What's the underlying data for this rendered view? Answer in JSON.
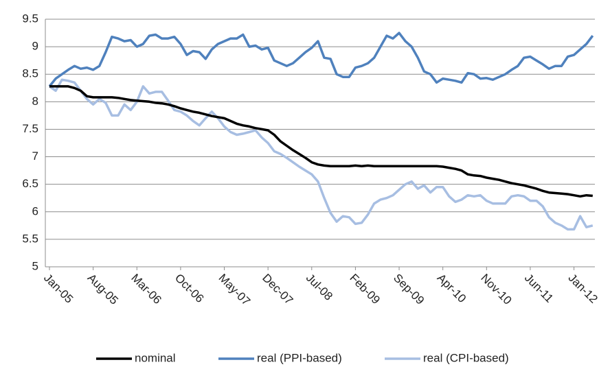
{
  "chart_data": {
    "type": "line",
    "categories": [
      "Jan-05",
      null,
      null,
      null,
      null,
      null,
      null,
      "Aug-05",
      null,
      null,
      null,
      null,
      null,
      null,
      "Mar-06",
      null,
      null,
      null,
      null,
      null,
      null,
      "Oct-06",
      null,
      null,
      null,
      null,
      null,
      null,
      "May-07",
      null,
      null,
      null,
      null,
      null,
      null,
      "Dec-07",
      null,
      null,
      null,
      null,
      null,
      null,
      "Jul-08",
      null,
      null,
      null,
      null,
      null,
      null,
      "Feb-09",
      null,
      null,
      null,
      null,
      null,
      null,
      "Sep-09",
      null,
      null,
      null,
      null,
      null,
      null,
      "Apr-10",
      null,
      null,
      null,
      null,
      null,
      null,
      "Nov-10",
      null,
      null,
      null,
      null,
      null,
      null,
      "Jun-11",
      null,
      null,
      null,
      null,
      null,
      null,
      "Jan-12",
      null,
      null,
      null
    ],
    "series": [
      {
        "name": "nominal",
        "color": "#000000",
        "values": [
          8.28,
          8.28,
          8.28,
          8.28,
          8.25,
          8.2,
          8.1,
          8.08,
          8.08,
          8.08,
          8.08,
          8.07,
          8.05,
          8.03,
          8.02,
          8.01,
          8.0,
          7.98,
          7.97,
          7.95,
          7.92,
          7.88,
          7.85,
          7.82,
          7.8,
          7.77,
          7.74,
          7.72,
          7.7,
          7.65,
          7.6,
          7.57,
          7.55,
          7.52,
          7.5,
          7.48,
          7.4,
          7.28,
          7.2,
          7.12,
          7.05,
          6.98,
          6.9,
          6.86,
          6.84,
          6.83,
          6.83,
          6.83,
          6.83,
          6.84,
          6.83,
          6.84,
          6.83,
          6.83,
          6.83,
          6.83,
          6.83,
          6.83,
          6.83,
          6.83,
          6.83,
          6.83,
          6.83,
          6.82,
          6.8,
          6.78,
          6.75,
          6.68,
          6.66,
          6.65,
          6.62,
          6.6,
          6.58,
          6.55,
          6.52,
          6.5,
          6.48,
          6.45,
          6.42,
          6.38,
          6.35,
          6.34,
          6.33,
          6.32,
          6.3,
          6.28,
          6.3,
          6.29
        ]
      },
      {
        "name": "real (PPI-based)",
        "color": "#4f81bd",
        "values": [
          8.28,
          8.42,
          8.5,
          8.58,
          8.65,
          8.6,
          8.62,
          8.58,
          8.65,
          8.9,
          9.18,
          9.15,
          9.1,
          9.12,
          9.0,
          9.05,
          9.2,
          9.22,
          9.15,
          9.15,
          9.18,
          9.05,
          8.85,
          8.92,
          8.9,
          8.78,
          8.95,
          9.05,
          9.1,
          9.15,
          9.15,
          9.22,
          9.0,
          9.02,
          8.95,
          8.98,
          8.75,
          8.7,
          8.65,
          8.7,
          8.8,
          8.9,
          8.98,
          9.1,
          8.8,
          8.78,
          8.5,
          8.45,
          8.45,
          8.62,
          8.65,
          8.7,
          8.8,
          9.0,
          9.2,
          9.15,
          9.25,
          9.1,
          9.0,
          8.8,
          8.55,
          8.5,
          8.35,
          8.42,
          8.4,
          8.38,
          8.35,
          8.52,
          8.5,
          8.42,
          8.43,
          8.4,
          8.45,
          8.5,
          8.58,
          8.65,
          8.8,
          8.82,
          8.75,
          8.68,
          8.6,
          8.65,
          8.65,
          8.82,
          8.85,
          8.95,
          9.05,
          9.2
        ]
      },
      {
        "name": "real (CPI-based)",
        "color": "#a7bee2",
        "values": [
          8.28,
          8.2,
          8.4,
          8.38,
          8.35,
          8.2,
          8.05,
          7.95,
          8.05,
          7.98,
          7.75,
          7.75,
          7.95,
          7.85,
          8.0,
          8.28,
          8.15,
          8.18,
          8.18,
          8.02,
          7.85,
          7.82,
          7.75,
          7.65,
          7.57,
          7.7,
          7.82,
          7.7,
          7.55,
          7.45,
          7.4,
          7.42,
          7.45,
          7.48,
          7.35,
          7.25,
          7.1,
          7.05,
          6.98,
          6.9,
          6.82,
          6.75,
          6.68,
          6.55,
          6.25,
          5.98,
          5.82,
          5.92,
          5.9,
          5.78,
          5.8,
          5.95,
          6.15,
          6.22,
          6.25,
          6.3,
          6.4,
          6.5,
          6.55,
          6.42,
          6.48,
          6.35,
          6.45,
          6.45,
          6.28,
          6.18,
          6.22,
          6.3,
          6.28,
          6.3,
          6.2,
          6.15,
          6.15,
          6.15,
          6.28,
          6.3,
          6.28,
          6.2,
          6.2,
          6.1,
          5.9,
          5.8,
          5.75,
          5.68,
          5.68,
          5.92,
          5.72,
          5.75
        ]
      }
    ],
    "ylim": [
      5,
      9.5
    ],
    "yticks": [
      5,
      5.5,
      6,
      6.5,
      7,
      7.5,
      8,
      8.5,
      9,
      9.5
    ],
    "grid": true
  }
}
